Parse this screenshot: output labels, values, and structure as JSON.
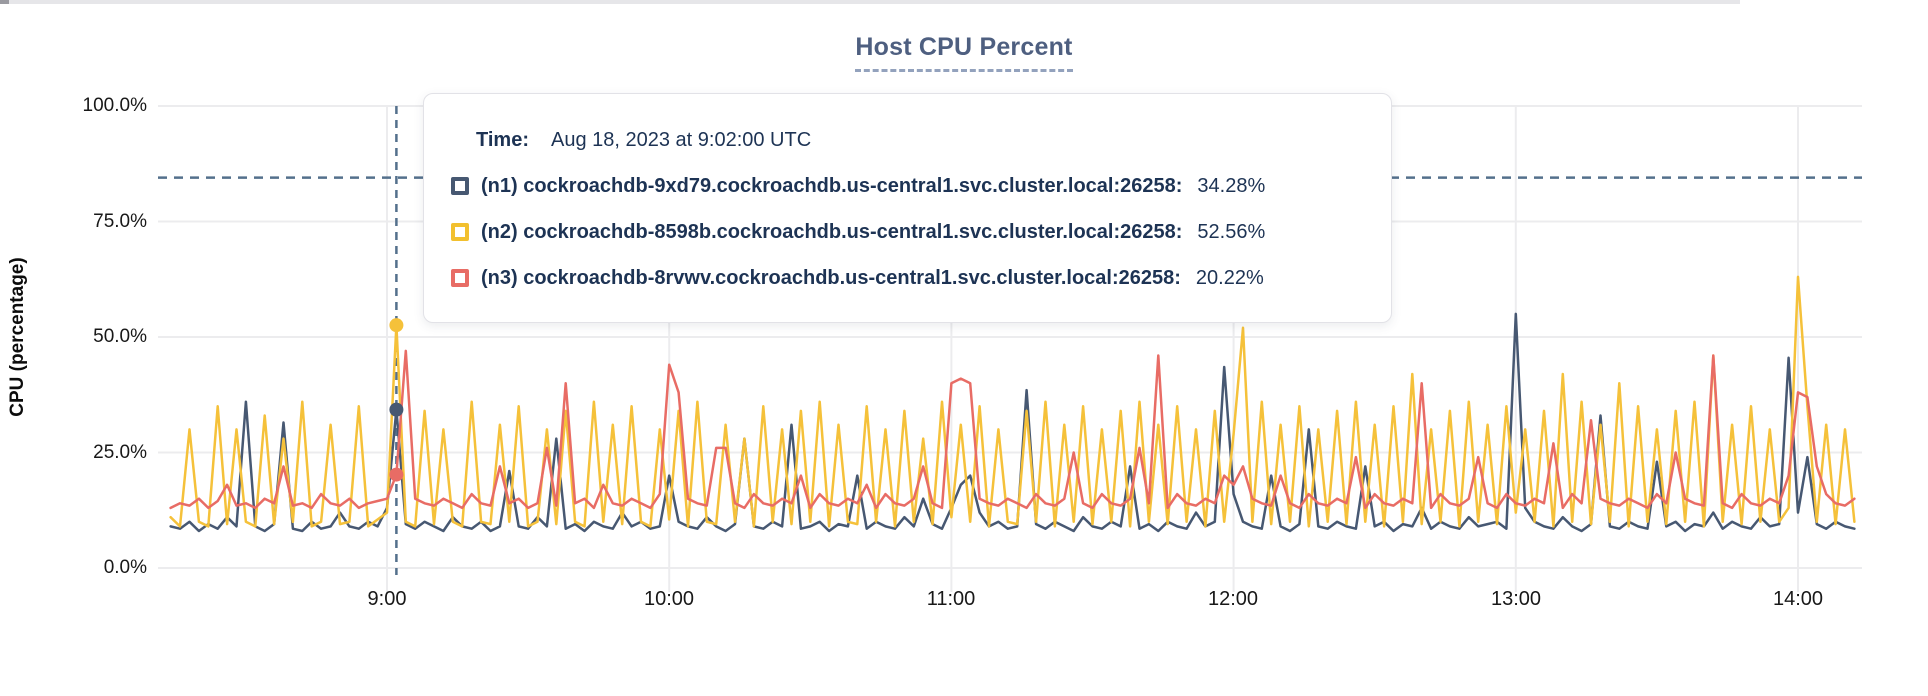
{
  "header": {
    "title": "Host CPU Percent"
  },
  "tooltip": {
    "time_label": "Time:",
    "time_value": "Aug 18, 2023 at 9:02:00 UTC",
    "rows": [
      {
        "id": "n1",
        "label": "(n1) cockroachdb-9xd79.cockroachdb.us-central1.svc.cluster.local:26258:",
        "value": "34.28%",
        "color": "#475872"
      },
      {
        "id": "n2",
        "label": "(n2) cockroachdb-8598b.cockroachdb.us-central1.svc.cluster.local:26258:",
        "value": "52.56%",
        "color": "#F2C02E"
      },
      {
        "id": "n3",
        "label": "(n3) cockroachdb-8rvwv.cockroachdb.us-central1.svc.cluster.local:26258:",
        "value": "20.22%",
        "color": "#E86C65"
      }
    ]
  },
  "chart_data": {
    "type": "line",
    "title": "Host CPU Percent",
    "ylabel": "CPU (percentage)",
    "xlabel": "",
    "ylim": [
      0,
      100
    ],
    "y_ticks": [
      "100.0%",
      "75.0%",
      "50.0%",
      "25.0%",
      "0.0%"
    ],
    "y_tick_values": [
      100,
      75,
      50,
      25,
      0
    ],
    "x_ticks": [
      "9:00",
      "10:00",
      "11:00",
      "12:00",
      "13:00",
      "14:00"
    ],
    "x_tick_hours": [
      9,
      10,
      11,
      12,
      13,
      14
    ],
    "x_start_hour": 8.2333,
    "x_step_minutes": 2,
    "grid": "on",
    "legend_position": "tooltip-overlay",
    "threshold_line": {
      "value": 84.5,
      "style": "dashed",
      "color": "#54708C"
    },
    "cursor": {
      "time": "9:02",
      "hour": 9.0333,
      "index": 24,
      "values": {
        "n1": 34.28,
        "n2": 52.56,
        "n3": 20.22
      },
      "style": "dashed-vertical"
    },
    "series": [
      {
        "name": "(n1) cockroachdb-9xd79.cockroachdb.us-central1.svc.cluster.local:26258",
        "color": "#475872",
        "values": [
          9,
          8.5,
          10,
          8,
          9.5,
          8.5,
          11,
          9,
          36,
          9,
          8,
          9.5,
          31.5,
          8.5,
          8,
          10,
          8.5,
          9,
          12,
          9,
          8.5,
          10,
          9,
          13,
          34.28,
          9.5,
          8.5,
          10,
          9,
          8,
          11,
          9,
          8.5,
          10,
          8,
          9,
          21,
          9,
          8.5,
          11,
          9,
          28,
          8.5,
          9.5,
          8,
          10,
          9,
          8.5,
          12,
          9,
          10,
          8.5,
          9,
          20,
          10,
          9,
          8.5,
          11,
          9,
          8,
          9.5,
          28,
          9,
          8.5,
          10,
          9,
          31,
          8.5,
          9,
          10,
          8,
          9.5,
          9,
          20,
          8.5,
          10,
          9,
          8.5,
          11,
          9,
          15,
          9.5,
          8.5,
          13,
          18,
          20,
          12,
          9,
          10,
          8.5,
          9,
          38.5,
          9.5,
          8.5,
          10,
          9,
          8,
          11,
          9,
          8.5,
          10,
          9,
          22,
          8.5,
          9.5,
          8,
          10,
          9,
          8.5,
          12,
          9,
          10,
          43.5,
          16,
          10,
          9,
          8.5,
          20,
          9,
          8,
          9.5,
          30,
          9,
          8.5,
          10,
          9,
          8.5,
          22,
          9,
          10,
          8,
          9.5,
          9,
          13,
          8.5,
          10,
          9,
          8.5,
          11,
          9,
          9.5,
          10,
          8.5,
          55,
          13,
          10,
          9,
          8.5,
          11,
          9,
          8,
          9.5,
          33,
          9,
          8.5,
          10,
          9,
          8.5,
          23,
          9,
          10,
          8,
          9.5,
          9,
          12,
          8.5,
          10,
          9,
          8.5,
          11,
          9,
          9.5,
          45.5,
          12,
          24,
          9.5,
          8.5,
          10,
          9,
          8.5
        ]
      },
      {
        "name": "(n2) cockroachdb-8598b.cockroachdb.us-central1.svc.cluster.local:26258",
        "color": "#F5C13A",
        "values": [
          11,
          9,
          30,
          10,
          9,
          35,
          9.5,
          30,
          10,
          9,
          33,
          9.5,
          28,
          10,
          36,
          9,
          10,
          31,
          9.5,
          10,
          35,
          9,
          10.5,
          12,
          52.56,
          10,
          9,
          34,
          9.5,
          30,
          10,
          9,
          36,
          10,
          9.5,
          31,
          10,
          35,
          9,
          10,
          30,
          9.5,
          34,
          10,
          9,
          36,
          10,
          31,
          9.5,
          35,
          10,
          9,
          30,
          10.5,
          34,
          9,
          36,
          10,
          9.5,
          31,
          10,
          28,
          9,
          35,
          10,
          30,
          9.5,
          34,
          10,
          36,
          9,
          31,
          10,
          9.5,
          35,
          10,
          30,
          9,
          34,
          10,
          28,
          9.5,
          36,
          11,
          31,
          10,
          35,
          9,
          30,
          10,
          9.5,
          34,
          10,
          36,
          9,
          31,
          10,
          35,
          9.5,
          30,
          10,
          34,
          9,
          36,
          10,
          31,
          9.5,
          35,
          10,
          30,
          9,
          34,
          10,
          29,
          52,
          10,
          36,
          9.5,
          31,
          10,
          35,
          9,
          30,
          10,
          34,
          9.5,
          36,
          10,
          31,
          9,
          35,
          10,
          42,
          9.5,
          30,
          10,
          34,
          9,
          36,
          10,
          31,
          9.5,
          35,
          12,
          30,
          10,
          34,
          9,
          42,
          10,
          36,
          9.5,
          31,
          10,
          40,
          9,
          35,
          10,
          30,
          9.5,
          34,
          10,
          36,
          9,
          46,
          10,
          31,
          9.5,
          35,
          10,
          30,
          10,
          13,
          63,
          35,
          10,
          31,
          9.5,
          30,
          10
        ]
      },
      {
        "name": "(n3) cockroachdb-8rvwv.cockroachdb.us-central1.svc.cluster.local:26258",
        "color": "#E86C65",
        "values": [
          13,
          14,
          13.5,
          15,
          13,
          14.5,
          18,
          13.5,
          14,
          13,
          15,
          14,
          22,
          13.5,
          14,
          13,
          16,
          14,
          13.5,
          15,
          13,
          14,
          14.5,
          15,
          20.22,
          47,
          15,
          14,
          13.5,
          15,
          14,
          13,
          16,
          14,
          13.5,
          22,
          14,
          15,
          13,
          14,
          26,
          13.5,
          40,
          14,
          15,
          13,
          18,
          14,
          13.5,
          15,
          14,
          13,
          16,
          44,
          38,
          15,
          14,
          13.5,
          26,
          26,
          14,
          13,
          16,
          14,
          13.5,
          15,
          14,
          20,
          13,
          16,
          14,
          13.5,
          15,
          14,
          18,
          13,
          16,
          14,
          13.5,
          15,
          22,
          14,
          13,
          40,
          41,
          40,
          15,
          14,
          13.5,
          15,
          14,
          13,
          16,
          14,
          13.5,
          15,
          25,
          14,
          13,
          16,
          14,
          13.5,
          15,
          26,
          14,
          46,
          13,
          16,
          14,
          13.5,
          15,
          14,
          20,
          18,
          22,
          15,
          14,
          13.5,
          20,
          14,
          13,
          16,
          14,
          13.5,
          15,
          14,
          24,
          13,
          16,
          14,
          13.5,
          15,
          14,
          40,
          13,
          16,
          14,
          13.5,
          15,
          24,
          14,
          13,
          16,
          14,
          13.5,
          15,
          14,
          27,
          13,
          16,
          14,
          32,
          15,
          14,
          13.5,
          15,
          14,
          13,
          16,
          14,
          25,
          15,
          14,
          13.5,
          46,
          14,
          13,
          16,
          14,
          13.5,
          15,
          14,
          20,
          38,
          37,
          22,
          16,
          14,
          13.5,
          15
        ]
      }
    ],
    "colors": {
      "grid": "#ECECEE",
      "dashed": "#54708C",
      "axis_text": "#181818",
      "title": "#4E5F80",
      "tooltip_text": "#1D3354"
    }
  }
}
